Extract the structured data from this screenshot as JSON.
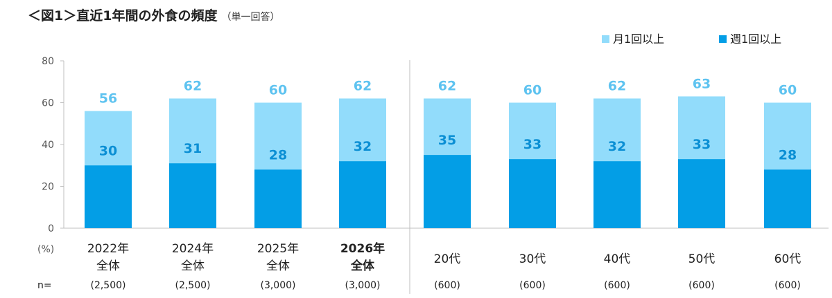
{
  "chart_data": {
    "type": "bar",
    "stacked": false,
    "overlap": true,
    "title": "＜図1＞直近1年間の外食の頻度",
    "subtitle": "（単一回答）",
    "unit_label": "(%)",
    "n_prefix": "n=",
    "ylim": [
      0,
      80
    ],
    "yticks": [
      "0",
      "20",
      "40",
      "60",
      "80"
    ],
    "grid": false,
    "legend_position": "top-right",
    "categories": [
      {
        "lines": [
          "2022年",
          "全体"
        ],
        "n": "(2,500)",
        "bold": false
      },
      {
        "lines": [
          "2024年",
          "全体"
        ],
        "n": "(2,500)",
        "bold": false
      },
      {
        "lines": [
          "2025年",
          "全体"
        ],
        "n": "(3,000)",
        "bold": false
      },
      {
        "lines": [
          "2026年",
          "全体"
        ],
        "n": "(3,000)",
        "bold": true
      },
      {
        "lines": [
          "20代"
        ],
        "n": "(600)",
        "bold": false
      },
      {
        "lines": [
          "30代"
        ],
        "n": "(600)",
        "bold": false
      },
      {
        "lines": [
          "40代"
        ],
        "n": "(600)",
        "bold": false
      },
      {
        "lines": [
          "50代"
        ],
        "n": "(600)",
        "bold": false
      },
      {
        "lines": [
          "60代"
        ],
        "n": "(600)",
        "bold": false
      }
    ],
    "series": [
      {
        "name": "月1回以上",
        "color": "#92dcfb",
        "label_color": "#5ec3f0",
        "values": [
          56,
          62,
          60,
          62,
          62,
          60,
          62,
          63,
          60
        ]
      },
      {
        "name": "週1回以上",
        "color": "#039ee6",
        "label_color": "#0b8fd4",
        "values": [
          30,
          31,
          28,
          32,
          35,
          33,
          32,
          33,
          28
        ]
      }
    ]
  }
}
